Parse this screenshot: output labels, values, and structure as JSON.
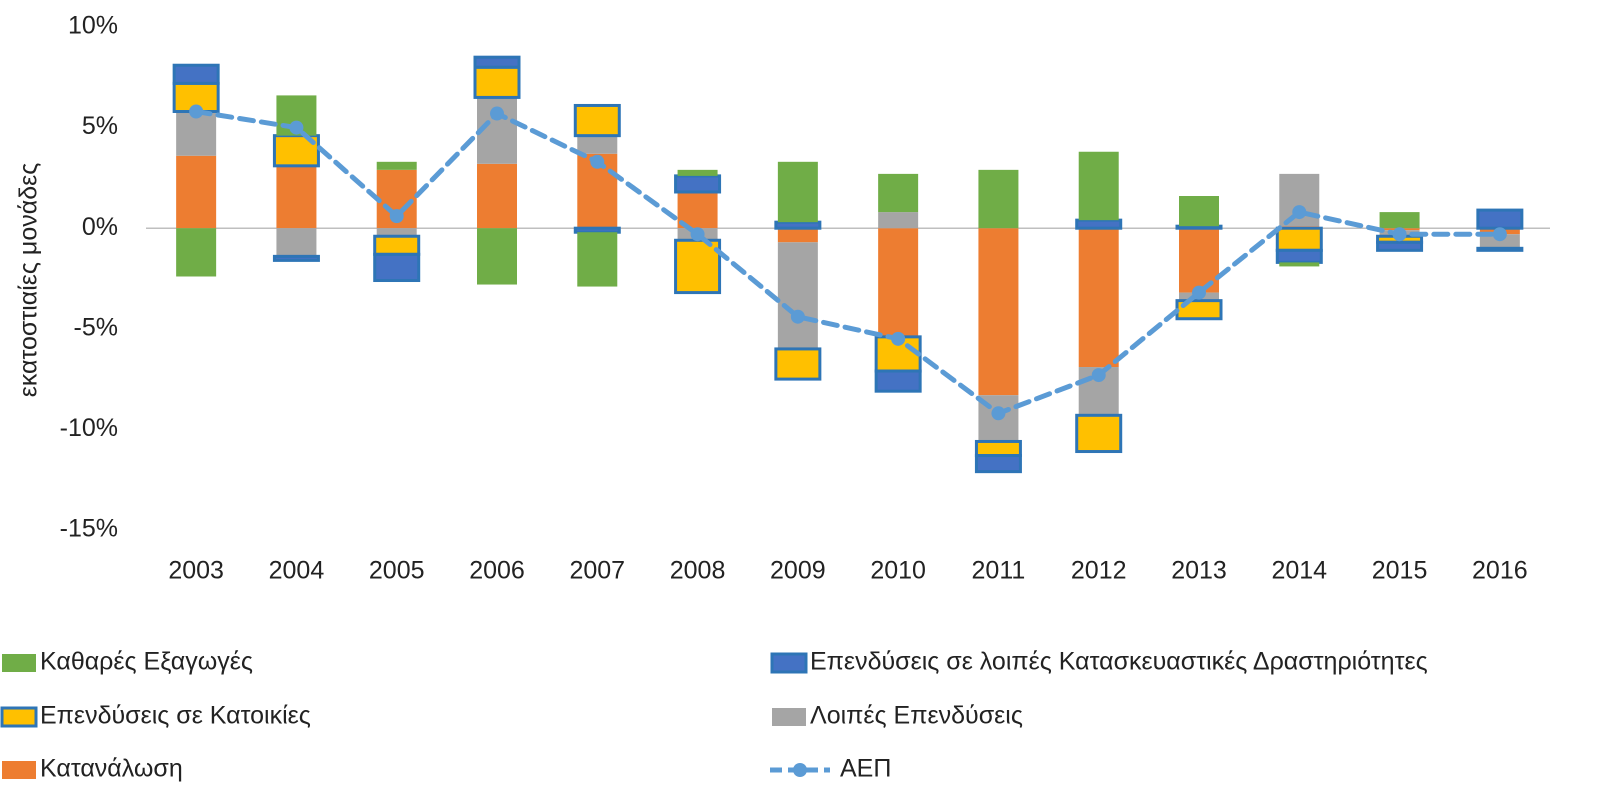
{
  "chart_data": {
    "type": "bar",
    "stacked": true,
    "y_label": "εκατοστιαίες μονάδες",
    "categories": [
      "2003",
      "2004",
      "2005",
      "2006",
      "2007",
      "2008",
      "2009",
      "2010",
      "2011",
      "2012",
      "2013",
      "2014",
      "2015",
      "2016"
    ],
    "ylim": [
      -15,
      10
    ],
    "yticks": [
      {
        "value": -15,
        "label": "-15%"
      },
      {
        "value": -10,
        "label": "-10%"
      },
      {
        "value": -5,
        "label": "-5%"
      },
      {
        "value": 0,
        "label": "0%"
      },
      {
        "value": 5,
        "label": "5%"
      },
      {
        "value": 10,
        "label": "10%"
      }
    ],
    "series": [
      {
        "name": "Κατανάλωση",
        "color": "#ed7d31",
        "values": [
          3.6,
          3.1,
          2.9,
          3.2,
          3.7,
          1.8,
          -0.7,
          -5.4,
          -8.3,
          -6.9,
          -3.2,
          0.1,
          -0.1,
          -0.3
        ]
      },
      {
        "name": "Λοιπές Επενδύσεις",
        "color": "#a5a5a5",
        "values": [
          2.2,
          -1.4,
          -0.4,
          3.3,
          0.9,
          -0.6,
          -5.3,
          0.8,
          -2.3,
          -2.4,
          -0.4,
          2.6,
          -0.3,
          -0.7
        ]
      },
      {
        "name": "Επενδύσεις σε Κατοικίες",
        "color": "#ffc000",
        "outline": "#2e75b6",
        "values": [
          1.4,
          1.5,
          -0.9,
          1.5,
          1.5,
          -2.6,
          -1.5,
          -1.7,
          -0.7,
          -1.8,
          -0.9,
          -1.1,
          -0.3,
          -0.1
        ]
      },
      {
        "name": "Επενδύσεις σε λοιπές Κατασκευαστικές Δραστηριότητες",
        "color": "#4472c4",
        "outline": "#2e75b6",
        "values": [
          0.9,
          -0.2,
          -1.3,
          0.5,
          -0.2,
          0.8,
          0.3,
          -1.0,
          -0.8,
          0.4,
          0.1,
          -0.6,
          -0.4,
          0.9
        ]
      },
      {
        "name": "Καθαρές Εξαγωγές",
        "color": "#70ad47",
        "values": [
          -2.4,
          2.0,
          0.4,
          -2.8,
          -2.7,
          0.3,
          3.0,
          1.9,
          2.9,
          3.4,
          1.5,
          -0.2,
          0.8,
          0
        ]
      },
      {
        "name": "ΑΕΠ",
        "type": "line",
        "color": "#5b9bd5",
        "values": [
          5.8,
          5.0,
          0.6,
          5.7,
          3.3,
          -0.3,
          -4.4,
          -5.5,
          -9.2,
          -7.3,
          -3.2,
          0.8,
          -0.3,
          -0.3
        ]
      }
    ]
  }
}
